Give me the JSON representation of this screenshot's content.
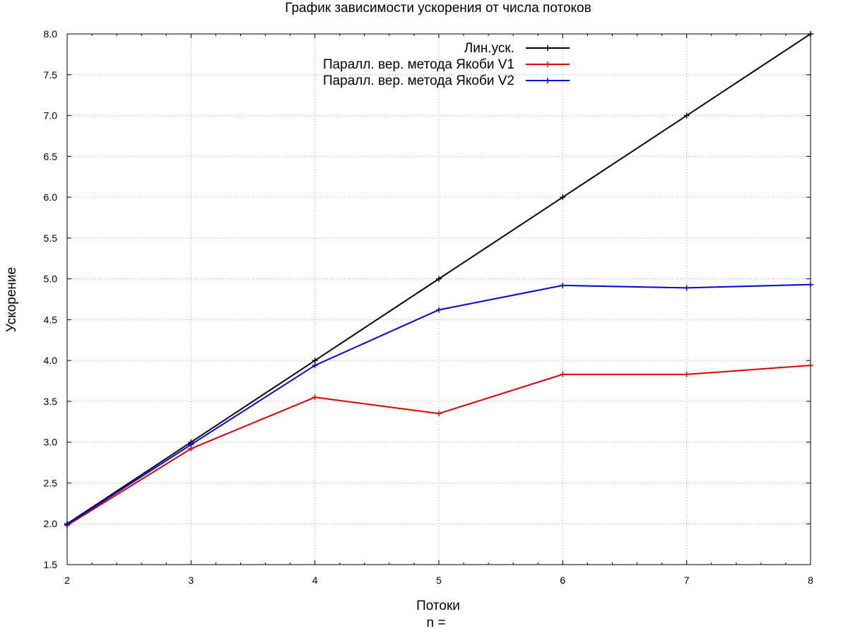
{
  "chart_data": {
    "type": "line",
    "title": "График зависимости ускорения от числа потоков",
    "xlabel": "Потоки",
    "xlabel_sub": "n =",
    "ylabel": "Ускорение",
    "x": [
      2,
      3,
      4,
      5,
      6,
      7,
      8
    ],
    "xlim": [
      2,
      8
    ],
    "ylim": [
      1.5,
      8.0
    ],
    "x_ticks": [
      "2",
      "3",
      "4",
      "5",
      "6",
      "7",
      "8"
    ],
    "y_ticks": [
      "1.5",
      "2.0",
      "2.5",
      "3.0",
      "3.5",
      "4.0",
      "4.5",
      "5.0",
      "5.5",
      "6.0",
      "6.5",
      "7.0",
      "7.5",
      "8.0"
    ],
    "grid": true,
    "legend_position": "top-center",
    "series": [
      {
        "name": "Лин.уск.",
        "color": "#000000",
        "values": [
          2.0,
          3.0,
          4.0,
          5.0,
          6.0,
          7.0,
          8.0
        ]
      },
      {
        "name": "Паралл. вер. метода Якоби V1",
        "color": "#dd0000",
        "values": [
          1.98,
          2.92,
          3.55,
          3.35,
          3.83,
          3.83,
          3.94
        ]
      },
      {
        "name": "Паралл. вер. метода Якоби V2",
        "color": "#0000dd",
        "values": [
          1.99,
          2.97,
          3.94,
          4.62,
          4.92,
          4.89,
          4.93
        ]
      }
    ]
  }
}
